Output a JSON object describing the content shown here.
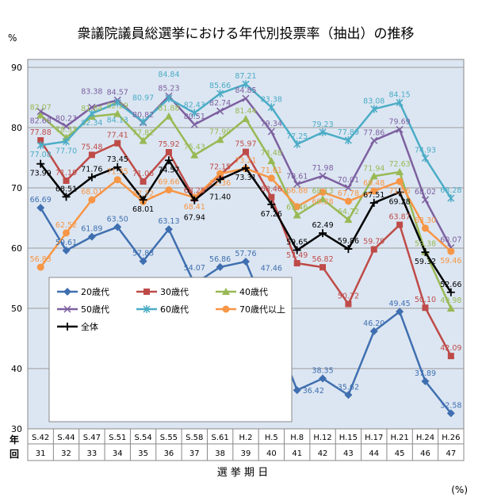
{
  "chart_data": {
    "type": "line",
    "title": "衆議院議員総選挙における年代別投票率（抽出）の推移",
    "ylabel": "%",
    "xlabel": "選 挙 期 日",
    "unit_note": "(%)",
    "ylim": [
      30,
      90
    ],
    "yticks": [
      30,
      40,
      50,
      60,
      70,
      80,
      90
    ],
    "row_labels": [
      "年",
      "回"
    ],
    "categories": [
      "S.42",
      "S.44",
      "S.47",
      "S.51",
      "S.54",
      "S.55",
      "S.58",
      "S.61",
      "H.2",
      "H.5",
      "H.8",
      "H.12",
      "H.15",
      "H.17",
      "H.21",
      "H.24",
      "H.26"
    ],
    "sessions": [
      "31",
      "32",
      "33",
      "34",
      "35",
      "36",
      "37",
      "38",
      "39",
      "40",
      "41",
      "42",
      "43",
      "44",
      "45",
      "46",
      "47"
    ],
    "legend_placement": "bottom-left",
    "grid": true,
    "series": [
      {
        "name": "20歳代",
        "color": "#3f6fb0",
        "marker": "diamond",
        "values": [
          66.69,
          59.61,
          61.89,
          63.5,
          57.83,
          63.13,
          54.07,
          56.86,
          57.76,
          47.46,
          36.42,
          38.35,
          35.62,
          46.2,
          49.45,
          37.89,
          32.58
        ]
      },
      {
        "name": "30歳代",
        "color": "#be4b48",
        "marker": "square",
        "values": [
          77.88,
          71.19,
          75.48,
          77.41,
          71.06,
          75.92,
          68.25,
          72.15,
          75.97,
          68.46,
          57.49,
          56.82,
          50.72,
          59.79,
          63.87,
          50.1,
          42.09
        ]
      },
      {
        "name": "40歳代",
        "color": "#98b954",
        "marker": "triangle",
        "values": [
          82.07,
          78.33,
          81.84,
          82.29,
          77.82,
          81.88,
          75.43,
          77.99,
          81.44,
          74.48,
          65.46,
          68.13,
          64.72,
          71.94,
          72.63,
          59.38,
          49.98
        ]
      },
      {
        "name": "50歳代",
        "color": "#7d60a0",
        "marker": "x",
        "values": [
          82.68,
          80.23,
          83.38,
          84.57,
          80.82,
          85.23,
          80.51,
          82.74,
          84.85,
          79.34,
          70.61,
          71.98,
          70.01,
          77.86,
          79.69,
          68.02,
          60.07
        ]
      },
      {
        "name": "60歳代",
        "color": "#4bacc6",
        "marker": "star",
        "values": [
          77.08,
          77.7,
          82.34,
          84.13,
          80.97,
          84.84,
          82.43,
          85.66,
          87.21,
          83.38,
          77.25,
          79.23,
          77.89,
          83.08,
          84.15,
          74.93,
          68.28
        ]
      },
      {
        "name": "70歳代以上",
        "color": "#f79646",
        "marker": "circle",
        "values": [
          56.83,
          62.52,
          68.01,
          71.35,
          67.72,
          69.66,
          68.41,
          72.36,
          73.21,
          71.61,
          66.88,
          69.28,
          67.78,
          69.48,
          71.06,
          63.3,
          59.46
        ]
      },
      {
        "name": "全体",
        "color": "#000000",
        "marker": "plus",
        "values": [
          73.99,
          68.51,
          71.76,
          73.45,
          68.01,
          74.57,
          67.94,
          71.4,
          73.31,
          67.26,
          59.65,
          62.49,
          59.86,
          67.51,
          69.28,
          59.32,
          52.66
        ]
      }
    ]
  }
}
